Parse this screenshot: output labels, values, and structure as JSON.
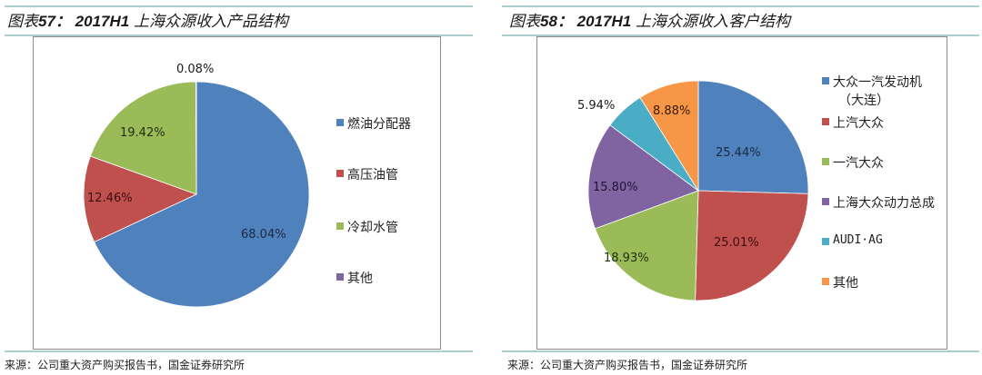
{
  "left": {
    "title_prefix": "图表",
    "title_num": "57：",
    "title_bold": "2017H1",
    "title_rest": "上海众源收入产品结构",
    "source": "来源：公司重大资产购买报告书，国金证券研究所",
    "legend": [
      {
        "label": "燃油分配器",
        "color": "#4f81bd"
      },
      {
        "label": "高压油管",
        "color": "#c0504d"
      },
      {
        "label": "冷却水管",
        "color": "#9bbb59"
      },
      {
        "label": "其他",
        "color": "#8064a2"
      }
    ],
    "labels": [
      "68.04%",
      "12.46%",
      "19.42%",
      "0.08%"
    ]
  },
  "right": {
    "title_prefix": "图表",
    "title_num": "58：",
    "title_bold": "2017H1",
    "title_rest": "上海众源收入客户结构",
    "source": "来源：公司重大资产购买报告书，国金证券研究所",
    "legend": [
      {
        "label": "大众一汽发动机",
        "label2": "（大连）",
        "color": "#4f81bd"
      },
      {
        "label": "上汽大众",
        "color": "#c0504d"
      },
      {
        "label": "一汽大众",
        "color": "#9bbb59"
      },
      {
        "label": "上海大众动力总成",
        "color": "#8064a2"
      },
      {
        "label": "AUDI·AG",
        "color": "#4bacc6"
      },
      {
        "label": "其他",
        "color": "#f79646"
      }
    ],
    "labels": [
      "25.44%",
      "25.01%",
      "18.93%",
      "15.80%",
      "5.94%",
      "8.88%"
    ]
  },
  "chart_data": [
    {
      "type": "pie",
      "title": "图表57：2017H1 上海众源收入产品结构",
      "categories": [
        "燃油分配器",
        "高压油管",
        "冷却水管",
        "其他"
      ],
      "values": [
        68.04,
        12.46,
        19.42,
        0.08
      ],
      "colors": [
        "#4f81bd",
        "#c0504d",
        "#9bbb59",
        "#8064a2"
      ],
      "unit": "%",
      "legend_position": "right",
      "start_angle": "12 o'clock, clockwise",
      "source": "来源：公司重大资产购买报告书，国金证券研究所"
    },
    {
      "type": "pie",
      "title": "图表58：2017H1 上海众源收入客户结构",
      "categories": [
        "大众一汽发动机（大连）",
        "上汽大众",
        "一汽大众",
        "上海大众动力总成",
        "AUDI·AG",
        "其他"
      ],
      "values": [
        25.44,
        25.01,
        18.93,
        15.8,
        5.94,
        8.88
      ],
      "colors": [
        "#4f81bd",
        "#c0504d",
        "#9bbb59",
        "#8064a2",
        "#4bacc6",
        "#f79646"
      ],
      "unit": "%",
      "legend_position": "right",
      "start_angle": "12 o'clock, clockwise",
      "source": "来源：公司重大资产购买报告书，国金证券研究所"
    }
  ]
}
